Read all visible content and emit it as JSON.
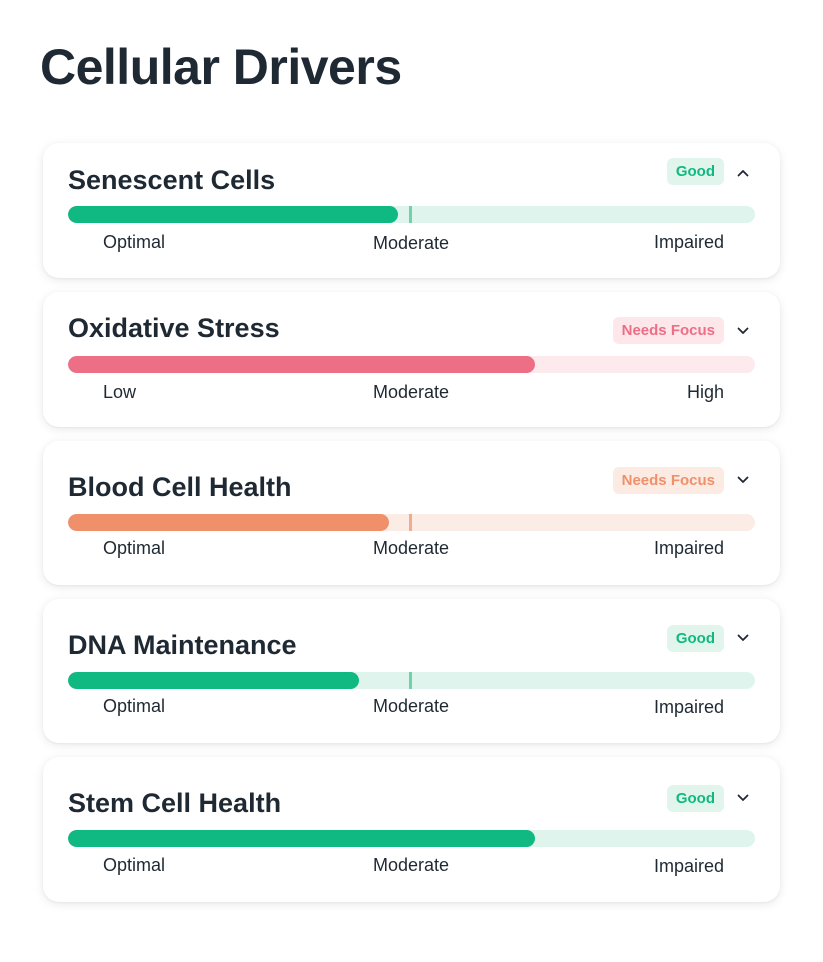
{
  "page": {
    "title": "Cellular Drivers"
  },
  "colors": {
    "good": "#10b981",
    "good_track": "#dff4ec",
    "good_badge_bg": "#e2f5ed",
    "focus_red": "#ec6f86",
    "focus_red_track": "#fdeaec",
    "focus_red_badge_bg": "#fde7ea",
    "focus_orange": "#f0906a",
    "focus_orange_track": "#fbece6",
    "focus_orange_badge_bg": "#fcebe3",
    "marker": "#6fd3a9"
  },
  "cards": [
    {
      "title": "Senescent Cells",
      "status": "Good",
      "tone": "good",
      "expanded": true,
      "chevron_icon": "chevron-up-icon",
      "progress": 0.48,
      "show_marker": true,
      "labels": {
        "low": "Optimal",
        "mid": "Moderate",
        "high": "Impaired"
      }
    },
    {
      "title": "Oxidative Stress",
      "status": "Needs Focus",
      "tone": "red",
      "expanded": false,
      "chevron_icon": "chevron-down-icon",
      "progress": 0.68,
      "show_marker": false,
      "labels": {
        "low": "Low",
        "mid": "Moderate",
        "high": "High"
      }
    },
    {
      "title": "Blood Cell Health",
      "status": "Needs Focus",
      "tone": "orange",
      "expanded": false,
      "chevron_icon": "chevron-down-icon",
      "progress": 0.467,
      "show_marker": true,
      "labels": {
        "low": "Optimal",
        "mid": "Moderate",
        "high": "Impaired"
      }
    },
    {
      "title": "DNA Maintenance",
      "status": "Good",
      "tone": "good",
      "expanded": false,
      "chevron_icon": "chevron-down-icon",
      "progress": 0.423,
      "show_marker": true,
      "labels": {
        "low": "Optimal",
        "mid": "Moderate",
        "high": "Impaired"
      }
    },
    {
      "title": "Stem Cell Health",
      "status": "Good",
      "tone": "good",
      "expanded": false,
      "chevron_icon": "chevron-down-icon",
      "progress": 0.68,
      "show_marker": false,
      "labels": {
        "low": "Optimal",
        "mid": "Moderate",
        "high": "Impaired"
      }
    }
  ]
}
